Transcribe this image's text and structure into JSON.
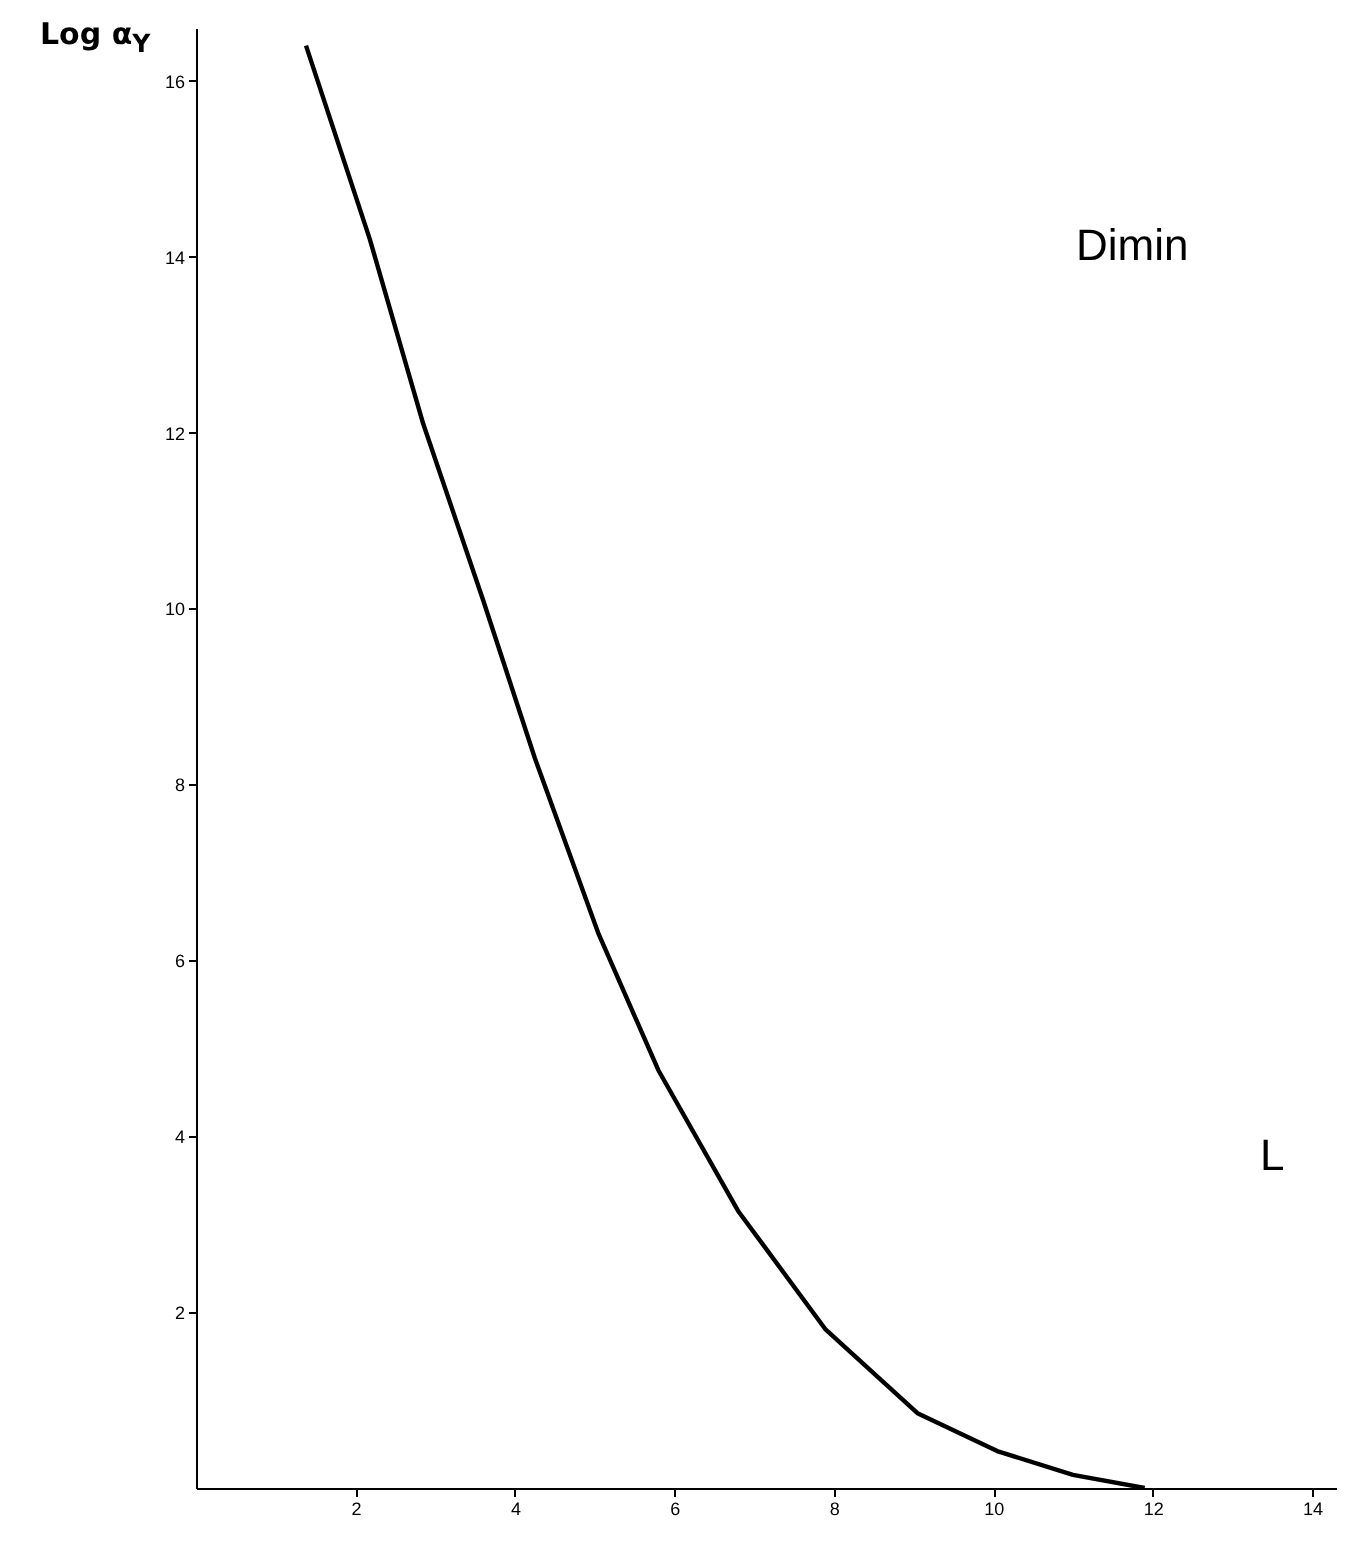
{
  "chart_data": {
    "type": "line",
    "ylabel": "Log α$_{Y}$",
    "x": [
      1.38,
      2.18,
      2.85,
      3.6,
      4.25,
      5.05,
      5.8,
      6.8,
      7.9,
      9.05,
      10.05,
      11.0,
      11.9
    ],
    "series": [
      {
        "color": "#000000",
        "values": [
          16.4,
          14.2,
          12.1,
          10.1,
          8.3,
          6.3,
          4.75,
          3.15,
          1.8,
          0.85,
          0.42,
          0.15,
          0
        ]
      }
    ],
    "xlim": [
      0,
      14.3
    ],
    "ylim": [
      0,
      16.6
    ],
    "xticks": [
      2,
      4,
      6,
      8,
      10,
      12,
      14
    ],
    "yticks": [
      2,
      4,
      6,
      8,
      10,
      12,
      14,
      16
    ],
    "grid": false,
    "marker": "none",
    "line_style": "solid",
    "annotations": [
      "Dimin",
      "L"
    ]
  }
}
